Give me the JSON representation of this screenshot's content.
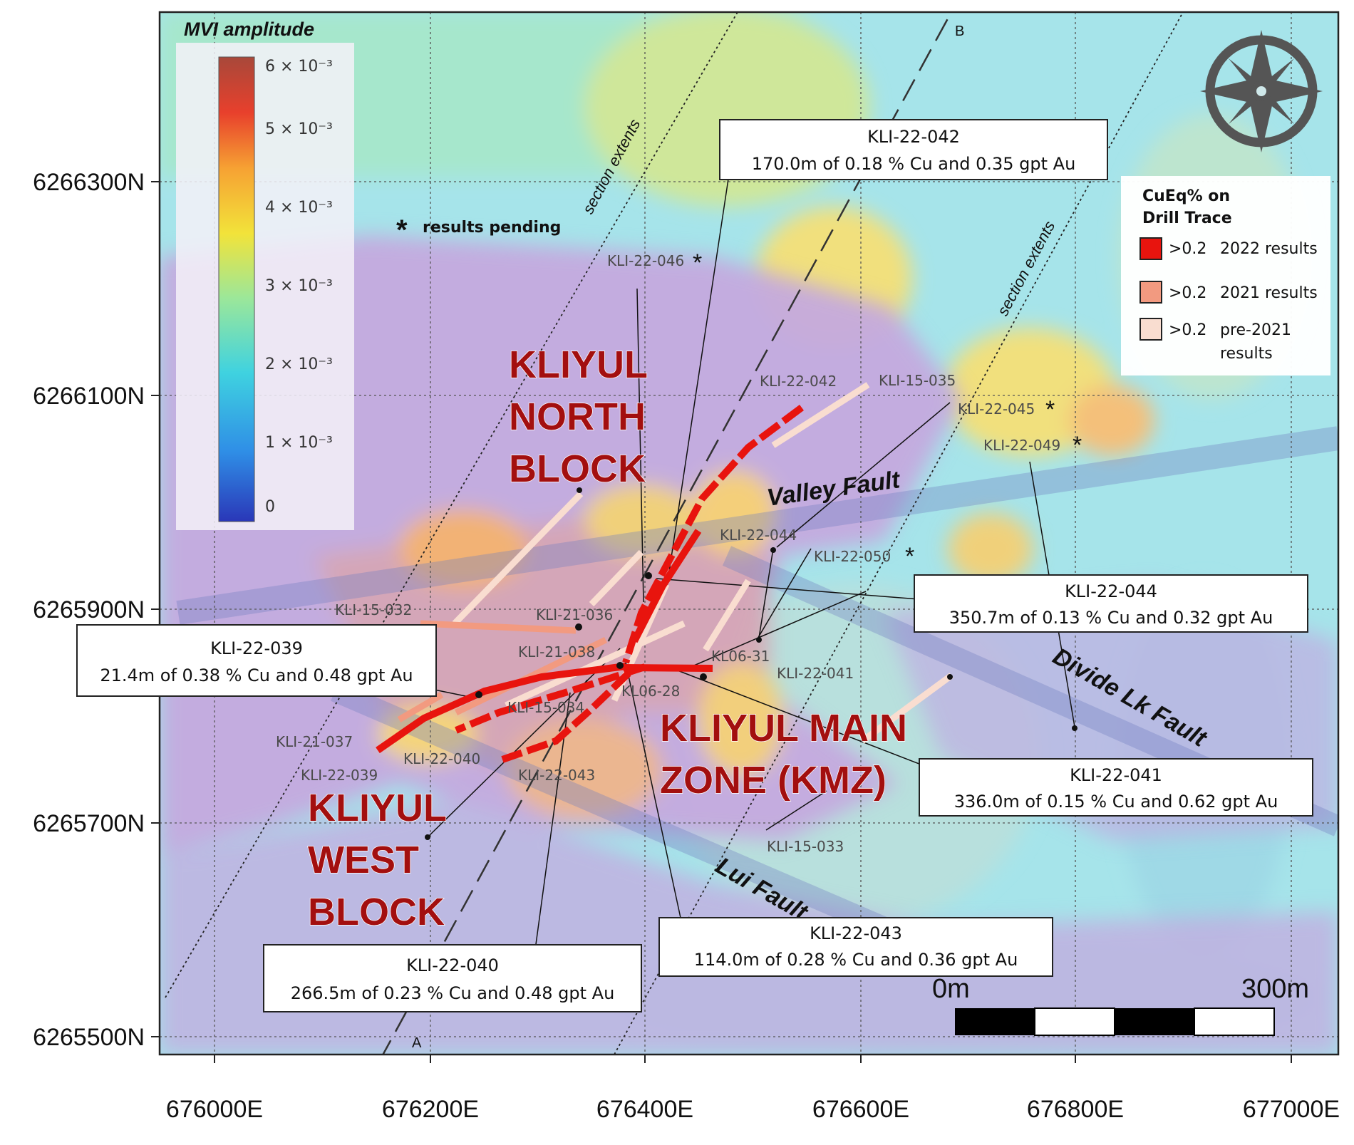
{
  "colorbar": {
    "title": "MVI amplitude",
    "ticks": [
      "6 × 10⁻³",
      "5 × 10⁻³",
      "4 × 10⁻³",
      "3 × 10⁻³",
      "2 × 10⁻³",
      "1 × 10⁻³",
      "0"
    ]
  },
  "axes": {
    "x_ticks": [
      "676000E",
      "676200E",
      "676400E",
      "676600E",
      "676800E",
      "677000E"
    ],
    "y_ticks": [
      "6266300N",
      "6266100N",
      "6265900N",
      "6265700N",
      "6265500N"
    ]
  },
  "legend": {
    "title_line1": "CuEq% on",
    "title_line2": "Drill Trace",
    "items": [
      {
        "threshold": ">0.2",
        "label": "2022 results",
        "label2": "",
        "color": "#e8140e"
      },
      {
        "threshold": ">0.2",
        "label": "2021 results",
        "label2": "",
        "color": "#f29a80"
      },
      {
        "threshold": ">0.2",
        "label": "pre-2021",
        "label2": "results",
        "color": "#f9ddd0"
      }
    ]
  },
  "pending_note": "results pending",
  "pending_marker": "*",
  "section": {
    "label": "section extents",
    "end_a": "A",
    "end_b": "B"
  },
  "zones": {
    "north": [
      "KLIYUL",
      "NORTH",
      "BLOCK"
    ],
    "main": [
      "KLIYUL MAIN",
      "ZONE (KMZ)"
    ],
    "west": [
      "KLIYUL",
      "WEST",
      "BLOCK"
    ]
  },
  "faults": {
    "valley": "Valley Fault",
    "divide": "Divide Lk Fault",
    "lui": "Lui Fault"
  },
  "drillhole_labels": {
    "kli22046": "KLI-22-046",
    "kli22042": "KLI-22-042",
    "kli15035": "KLI-15-035",
    "kli22045": "KLI-22-045",
    "kli22049": "KLI-22-049",
    "kli22044": "KLI-22-044",
    "kli22050": "KLI-22-050",
    "kli15032": "KLI-15-032",
    "kli21036": "KLI-21-036",
    "kli21038": "KLI-21-038",
    "kl0631": "KL06-31",
    "kli22041": "KLI-22-041",
    "kl0628": "KL06-28",
    "kli15034": "KLI-15-034",
    "kli21037": "KLI-21-037",
    "kli22040": "KLI-22-040",
    "kli22043": "KLI-22-043",
    "kli22039": "KLI-22-039",
    "kli15033": "KLI-15-033"
  },
  "result_boxes": {
    "kli22042": {
      "hole": "KLI-22-042",
      "result": "170.0m of 0.18 % Cu and 0.35 gpt Au"
    },
    "kli22044": {
      "hole": "KLI-22-044",
      "result": "350.7m of 0.13 % Cu and 0.32 gpt Au"
    },
    "kli22039": {
      "hole": "KLI-22-039",
      "result": "21.4m of 0.38 % Cu and 0.48 gpt Au"
    },
    "kli22041": {
      "hole": "KLI-22-041",
      "result": "336.0m of 0.15 % Cu and 0.62 gpt Au"
    },
    "kli22043": {
      "hole": "KLI-22-043",
      "result": "114.0m of 0.28 % Cu and 0.36 gpt Au"
    },
    "kli22040": {
      "hole": "KLI-22-040",
      "result": "266.5m of 0.23 % Cu and 0.48 gpt Au"
    }
  },
  "scalebar": {
    "start": "0m",
    "end": "300m"
  },
  "colors": {
    "drill_2022": "#e8140e",
    "drill_2021": "#f29a80",
    "drill_pre2021": "#f9ddd0",
    "zone_text": "#a30f0f",
    "fault_band": "#6f7fbf"
  },
  "north_arrow_icon": "compass-rose-icon"
}
